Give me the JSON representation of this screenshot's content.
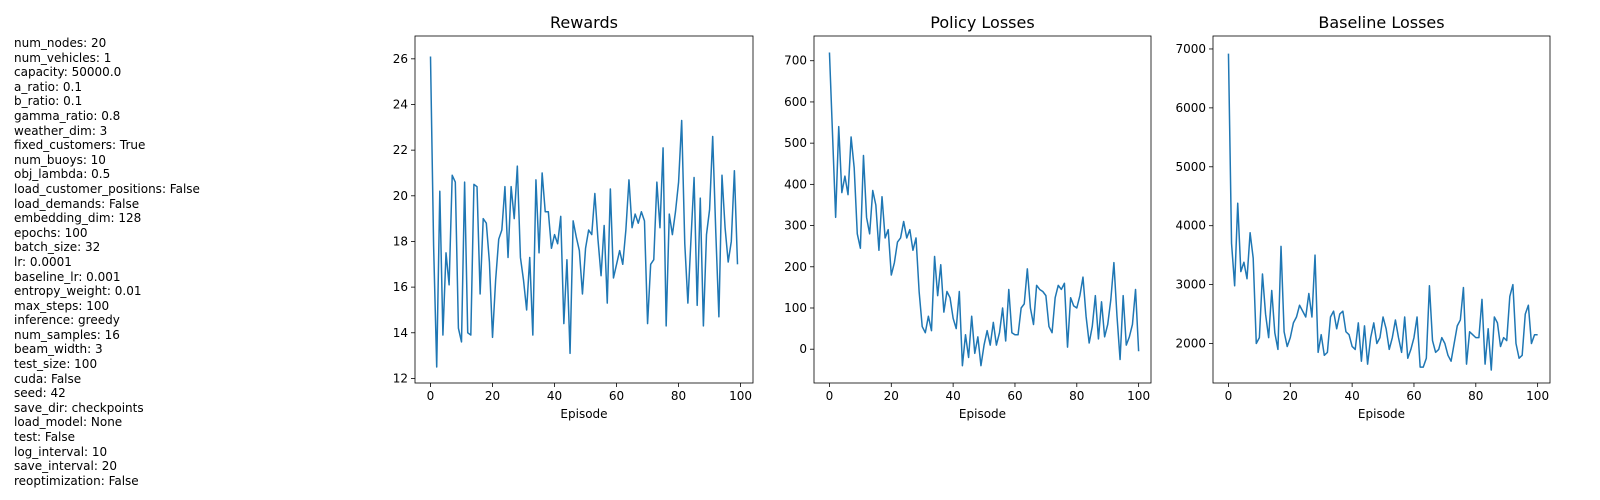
{
  "params": [
    "num_nodes: 20",
    "num_vehicles: 1",
    "capacity: 50000.0",
    "a_ratio: 0.1",
    "b_ratio: 0.1",
    "gamma_ratio: 0.8",
    "weather_dim: 3",
    "fixed_customers: True",
    "num_buoys: 10",
    "obj_lambda: 0.5",
    "load_customer_positions: False",
    "load_demands: False",
    "embedding_dim: 128",
    "epochs: 100",
    "batch_size: 32",
    "lr: 0.0001",
    "baseline_lr: 0.001",
    "entropy_weight: 0.01",
    "max_steps: 100",
    "inference: greedy",
    "num_samples: 16",
    "beam_width: 3",
    "test_size: 100",
    "cuda: False",
    "seed: 42",
    "save_dir: checkpoints",
    "load_model: None",
    "test: False",
    "log_interval: 10",
    "save_interval: 20",
    "reoptimization: False"
  ],
  "chart_data": [
    {
      "type": "line",
      "title": "Rewards",
      "xlabel": "Episode",
      "ylabel": "",
      "xlim": [
        -5,
        104
      ],
      "ylim": [
        11.8,
        27.0
      ],
      "xticks": [
        0,
        20,
        40,
        60,
        80,
        100
      ],
      "yticks": [
        12,
        14,
        16,
        18,
        20,
        22,
        24,
        26
      ],
      "grid": false,
      "color": "#1f77b4",
      "y": [
        26.1,
        17.8,
        12.5,
        20.2,
        13.9,
        17.5,
        16.1,
        20.9,
        20.6,
        14.2,
        13.6,
        20.6,
        14.0,
        13.9,
        20.5,
        20.4,
        15.7,
        19.0,
        18.8,
        17.1,
        13.8,
        16.3,
        18.1,
        18.5,
        20.4,
        17.3,
        20.4,
        19.0,
        21.3,
        17.3,
        16.3,
        15.0,
        17.3,
        13.9,
        20.7,
        17.5,
        21.0,
        19.3,
        19.3,
        17.7,
        18.3,
        17.9,
        19.1,
        14.4,
        17.2,
        13.1,
        18.9,
        18.2,
        17.6,
        15.7,
        17.7,
        18.5,
        18.3,
        20.1,
        18.1,
        16.5,
        18.7,
        15.3,
        20.3,
        16.4,
        17.0,
        17.6,
        17.0,
        18.5,
        20.7,
        18.6,
        19.2,
        18.8,
        19.3,
        18.9,
        14.4,
        17.0,
        17.2,
        20.6,
        18.6,
        22.1,
        14.3,
        19.2,
        18.3,
        19.3,
        20.6,
        23.3,
        17.9,
        15.3,
        18.1,
        20.8,
        15.2,
        19.9,
        14.3,
        18.3,
        19.4,
        22.6,
        18.4,
        14.7,
        20.9,
        18.6,
        17.1,
        18.0,
        21.1,
        17.0
      ]
    },
    {
      "type": "line",
      "title": "Policy Losses",
      "xlabel": "Episode",
      "ylabel": "",
      "xlim": [
        -5,
        104
      ],
      "ylim": [
        -82,
        760
      ],
      "xticks": [
        0,
        20,
        40,
        60,
        80,
        100
      ],
      "yticks": [
        0,
        100,
        200,
        300,
        400,
        500,
        600,
        700
      ],
      "grid": false,
      "color": "#1f77b4",
      "y": [
        720,
        520,
        320,
        540,
        380,
        420,
        375,
        515,
        440,
        280,
        245,
        470,
        320,
        280,
        385,
        350,
        240,
        370,
        270,
        290,
        180,
        210,
        260,
        270,
        310,
        270,
        290,
        240,
        270,
        140,
        55,
        40,
        80,
        45,
        225,
        130,
        205,
        90,
        140,
        125,
        75,
        50,
        140,
        -40,
        35,
        -20,
        80,
        -10,
        30,
        -40,
        10,
        45,
        10,
        65,
        10,
        40,
        100,
        20,
        145,
        40,
        35,
        35,
        100,
        110,
        195,
        100,
        60,
        155,
        145,
        140,
        130,
        55,
        40,
        125,
        155,
        145,
        160,
        5,
        125,
        105,
        100,
        130,
        175,
        80,
        15,
        55,
        130,
        25,
        115,
        30,
        60,
        120,
        210,
        80,
        -25,
        130,
        10,
        30,
        60,
        145,
        -5
      ]
    },
    {
      "type": "line",
      "title": "Baseline Losses",
      "xlabel": "Episode",
      "ylabel": "",
      "xlim": [
        -5,
        104
      ],
      "ylim": [
        1330,
        7220
      ],
      "xticks": [
        0,
        20,
        40,
        60,
        80,
        100
      ],
      "yticks": [
        2000,
        3000,
        4000,
        5000,
        6000,
        7000
      ],
      "grid": false,
      "color": "#1f77b4",
      "y": [
        6920,
        3700,
        2980,
        4380,
        3220,
        3380,
        3100,
        3880,
        3450,
        2000,
        2100,
        3180,
        2500,
        2100,
        2900,
        2180,
        1900,
        3650,
        2200,
        1950,
        2100,
        2350,
        2450,
        2650,
        2550,
        2450,
        2850,
        2450,
        3500,
        1850,
        2150,
        1800,
        1850,
        2450,
        2550,
        2250,
        2500,
        2550,
        2200,
        2150,
        1950,
        1900,
        2350,
        1700,
        2300,
        1650,
        2100,
        2350,
        2000,
        2100,
        2450,
        2250,
        1900,
        2100,
        2400,
        2100,
        1850,
        2450,
        1750,
        1900,
        2100,
        2450,
        1600,
        1600,
        1750,
        2980,
        2050,
        1850,
        1900,
        2100,
        2000,
        1800,
        1700,
        2000,
        2300,
        2400,
        2950,
        1650,
        2200,
        2150,
        2100,
        2100,
        2750,
        1650,
        2250,
        1550,
        2450,
        2350,
        1950,
        2100,
        2050,
        2800,
        3000,
        2000,
        1750,
        1800,
        2500,
        2650,
        2000,
        2150,
        2150
      ]
    }
  ]
}
